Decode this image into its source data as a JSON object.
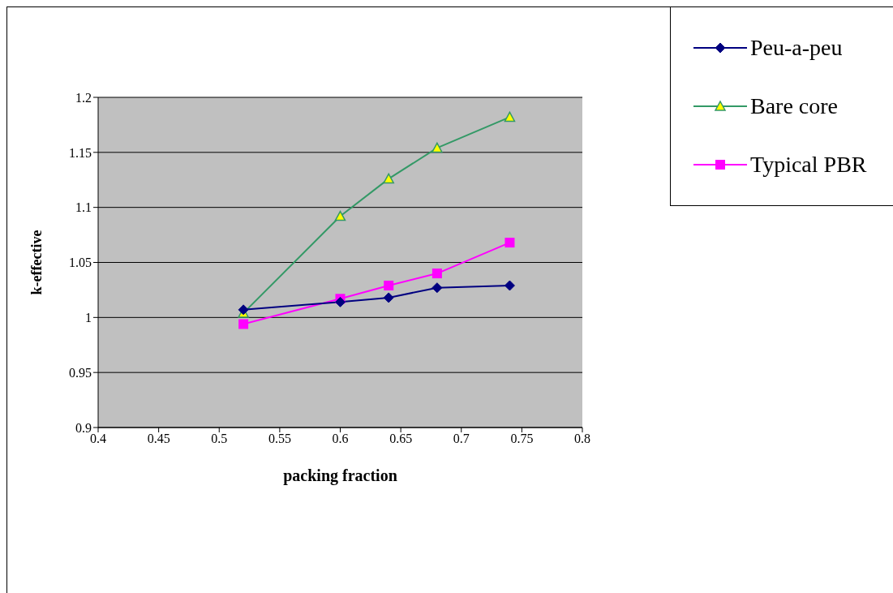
{
  "chart_data": {
    "type": "line",
    "xlabel": "packing fraction",
    "ylabel": "k-effective",
    "x": [
      0.52,
      0.6,
      0.64,
      0.68,
      0.74
    ],
    "series": [
      {
        "name": "Peu-a-peu",
        "color": "#000080",
        "marker": "diamond",
        "values": [
          1.007,
          1.014,
          1.018,
          1.027,
          1.029
        ]
      },
      {
        "name": "Bare core",
        "color": "#339966",
        "marker": "triangle",
        "values": [
          1.004,
          1.092,
          1.126,
          1.154,
          1.182
        ]
      },
      {
        "name": "Typical PBR",
        "color": "#ff00ff",
        "marker": "square",
        "values": [
          0.994,
          1.017,
          1.029,
          1.04,
          1.068
        ]
      }
    ],
    "xlim": [
      0.4,
      0.8
    ],
    "xticks": [
      0.4,
      0.45,
      0.5,
      0.55,
      0.6,
      0.65,
      0.7,
      0.75,
      0.8
    ],
    "ylim": [
      0.9,
      1.2
    ],
    "yticks": [
      0.9,
      0.95,
      1,
      1.05,
      1.1,
      1.15,
      1.2
    ],
    "grid": "y",
    "legend": "top right",
    "line_style": "solid"
  }
}
